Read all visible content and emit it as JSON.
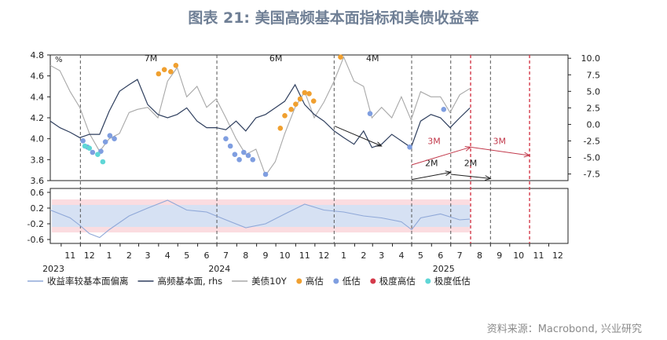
{
  "title": "图表 21: 美国高频基本面指标和美债收益率",
  "source": "资料来源：Macrobond, 兴业研究",
  "colors": {
    "deviation": "#8fa8d8",
    "fundamental": "#2f3f5e",
    "us10y": "#a8a8a8",
    "high": "#f0a030",
    "low": "#7f9ee0",
    "extreme_high": "#d43a4a",
    "extreme_low": "#5fd6d6",
    "band_outer": "#fbdce0",
    "band_inner": "#d6e1f3",
    "annotation_red": "#c2394b",
    "annotation_black": "#222222"
  },
  "chart_data": [
    {
      "type": "line",
      "panel": "top",
      "y_left_unit": "%",
      "y_left_ticks": [
        "3.6",
        "3.8",
        "4.0",
        "4.2",
        "4.4",
        "4.6",
        "4.8"
      ],
      "y_left_range": [
        3.6,
        4.8
      ],
      "y_right_ticks": [
        "-7.5",
        "-5.0",
        "-2.5",
        "0.0",
        "2.5",
        "5.0",
        "7.5",
        "10.0"
      ],
      "y_right_range": [
        -8.5,
        10.5
      ],
      "x_range": [
        "2023-10-15",
        "2025-12-31"
      ],
      "series": [
        {
          "name": "高频基本面, rhs",
          "axis": "right",
          "points": [
            [
              "2023-10-15",
              0.5
            ],
            [
              "2023-10-30",
              -0.5
            ],
            [
              "2023-11-15",
              -1.2
            ],
            [
              "2023-11-30",
              -2.0
            ],
            [
              "2023-12-15",
              -1.5
            ],
            [
              "2023-12-31",
              -1.5
            ],
            [
              "2024-01-15",
              2.0
            ],
            [
              "2024-01-31",
              5.0
            ],
            [
              "2024-02-15",
              6.0
            ],
            [
              "2024-02-28",
              6.8
            ],
            [
              "2024-03-15",
              3.0
            ],
            [
              "2024-03-31",
              1.5
            ],
            [
              "2024-04-15",
              1.0
            ],
            [
              "2024-04-30",
              1.5
            ],
            [
              "2024-05-15",
              2.5
            ],
            [
              "2024-05-31",
              0.5
            ],
            [
              "2024-06-15",
              -0.5
            ],
            [
              "2024-06-30",
              -0.5
            ],
            [
              "2024-07-15",
              -0.8
            ],
            [
              "2024-07-31",
              0.5
            ],
            [
              "2024-08-15",
              -1.0
            ],
            [
              "2024-08-31",
              1.0
            ],
            [
              "2024-09-15",
              1.5
            ],
            [
              "2024-09-30",
              2.5
            ],
            [
              "2024-10-15",
              3.5
            ],
            [
              "2024-10-31",
              6.0
            ],
            [
              "2024-11-15",
              3.0
            ],
            [
              "2024-11-30",
              1.5
            ],
            [
              "2024-12-15",
              0.5
            ],
            [
              "2024-12-31",
              -1.0
            ],
            [
              "2025-01-15",
              -2.0
            ],
            [
              "2025-01-31",
              -3.0
            ],
            [
              "2025-02-15",
              -1.0
            ],
            [
              "2025-02-28",
              -3.5
            ],
            [
              "2025-03-15",
              -3.0
            ],
            [
              "2025-03-31",
              -1.5
            ],
            [
              "2025-04-15",
              -2.5
            ],
            [
              "2025-04-30",
              -3.5
            ],
            [
              "2025-05-15",
              0.5
            ],
            [
              "2025-05-31",
              1.5
            ],
            [
              "2025-06-15",
              1.0
            ],
            [
              "2025-06-30",
              -0.5
            ],
            [
              "2025-07-15",
              1.0
            ],
            [
              "2025-07-31",
              2.5
            ]
          ]
        },
        {
          "name": "美债10Y",
          "axis": "left",
          "points": [
            [
              "2023-10-15",
              4.7
            ],
            [
              "2023-10-30",
              4.65
            ],
            [
              "2023-11-15",
              4.45
            ],
            [
              "2023-11-30",
              4.3
            ],
            [
              "2023-12-15",
              4.05
            ],
            [
              "2023-12-31",
              3.88
            ],
            [
              "2024-01-15",
              4.0
            ],
            [
              "2024-01-31",
              4.05
            ],
            [
              "2024-02-15",
              4.25
            ],
            [
              "2024-02-28",
              4.28
            ],
            [
              "2024-03-15",
              4.3
            ],
            [
              "2024-03-31",
              4.2
            ],
            [
              "2024-04-15",
              4.55
            ],
            [
              "2024-04-30",
              4.68
            ],
            [
              "2024-05-15",
              4.4
            ],
            [
              "2024-05-31",
              4.5
            ],
            [
              "2024-06-15",
              4.3
            ],
            [
              "2024-06-30",
              4.38
            ],
            [
              "2024-07-15",
              4.2
            ],
            [
              "2024-07-31",
              4.0
            ],
            [
              "2024-08-15",
              3.85
            ],
            [
              "2024-08-31",
              3.9
            ],
            [
              "2024-09-15",
              3.65
            ],
            [
              "2024-09-30",
              3.78
            ],
            [
              "2024-10-15",
              4.05
            ],
            [
              "2024-10-31",
              4.3
            ],
            [
              "2024-11-15",
              4.45
            ],
            [
              "2024-11-30",
              4.2
            ],
            [
              "2024-12-15",
              4.35
            ],
            [
              "2024-12-31",
              4.55
            ],
            [
              "2025-01-15",
              4.78
            ],
            [
              "2025-01-31",
              4.55
            ],
            [
              "2025-02-15",
              4.5
            ],
            [
              "2025-02-28",
              4.2
            ],
            [
              "2025-03-15",
              4.3
            ],
            [
              "2025-03-31",
              4.2
            ],
            [
              "2025-04-15",
              4.4
            ],
            [
              "2025-04-30",
              4.18
            ],
            [
              "2025-05-15",
              4.45
            ],
            [
              "2025-05-31",
              4.4
            ],
            [
              "2025-06-15",
              4.4
            ],
            [
              "2025-06-30",
              4.25
            ],
            [
              "2025-07-15",
              4.42
            ],
            [
              "2025-07-31",
              4.48
            ]
          ]
        }
      ],
      "markers": {
        "high": [
          [
            "2024-04-01",
            4.62
          ],
          [
            "2024-04-10",
            4.66
          ],
          [
            "2024-04-20",
            4.64
          ],
          [
            "2024-04-28",
            4.7
          ],
          [
            "2024-10-25",
            4.28
          ],
          [
            "2024-11-01",
            4.33
          ],
          [
            "2024-11-08",
            4.38
          ],
          [
            "2024-11-15",
            4.44
          ],
          [
            "2024-11-22",
            4.43
          ],
          [
            "2024-11-29",
            4.36
          ],
          [
            "2024-10-15",
            4.22
          ],
          [
            "2024-10-08",
            4.1
          ],
          [
            "2025-01-10",
            4.78
          ]
        ],
        "low": [
          [
            "2023-12-05",
            3.98
          ],
          [
            "2023-12-12",
            3.92
          ],
          [
            "2023-12-20",
            3.87
          ],
          [
            "2024-01-02",
            3.88
          ],
          [
            "2024-01-09",
            3.97
          ],
          [
            "2024-01-16",
            4.03
          ],
          [
            "2024-01-23",
            4.0
          ],
          [
            "2024-07-15",
            4.0
          ],
          [
            "2024-07-22",
            3.93
          ],
          [
            "2024-07-29",
            3.85
          ],
          [
            "2024-08-05",
            3.8
          ],
          [
            "2024-08-12",
            3.87
          ],
          [
            "2024-08-19",
            3.84
          ],
          [
            "2024-08-26",
            3.8
          ],
          [
            "2024-09-15",
            3.66
          ],
          [
            "2025-02-25",
            4.24
          ],
          [
            "2025-04-28",
            3.92
          ],
          [
            "2025-06-20",
            4.28
          ]
        ],
        "extreme_low": [
          [
            "2023-12-08",
            3.93
          ],
          [
            "2023-12-15",
            3.91
          ],
          [
            "2023-12-28",
            3.85
          ],
          [
            "2024-01-05",
            3.78
          ]
        ]
      },
      "vlines": [
        "2023-12-01",
        "2024-07-01",
        "2024-12-31",
        "2025-05-01",
        "2025-07-01",
        "2025-08-01",
        "2025-09-01",
        "2025-11-01"
      ],
      "vlines_red": [
        "2025-08-01",
        "2025-11-01"
      ],
      "annotations": [
        {
          "text": "7M",
          "x": "2024-03-20",
          "y": 4.74
        },
        {
          "text": "6M",
          "x": "2024-10-01",
          "y": 4.74
        },
        {
          "text": "4M",
          "x": "2025-03-01",
          "y": 4.74
        },
        {
          "text": "3M",
          "x": "2025-06-05",
          "y": 3.95,
          "color": "red"
        },
        {
          "text": "3M",
          "x": "2025-09-15",
          "y": 3.95,
          "color": "red"
        },
        {
          "text": "2M",
          "x": "2025-06-01",
          "y": 3.74
        },
        {
          "text": "2M",
          "x": "2025-08-01",
          "y": 3.74
        }
      ]
    },
    {
      "type": "area",
      "panel": "bottom",
      "name": "收益率较基本面偏离",
      "y_ticks": [
        "-0.6",
        "-0.2",
        "0.2",
        "0.6"
      ],
      "y_range": [
        -0.7,
        0.7
      ],
      "band_inner": [
        -0.28,
        0.28
      ],
      "band_outer": [
        -0.42,
        0.42
      ],
      "points": [
        [
          "2023-10-15",
          0.15
        ],
        [
          "2023-11-15",
          -0.05
        ],
        [
          "2023-12-01",
          -0.25
        ],
        [
          "2023-12-15",
          -0.45
        ],
        [
          "2023-12-31",
          -0.55
        ],
        [
          "2024-01-15",
          -0.35
        ],
        [
          "2024-02-15",
          0.0
        ],
        [
          "2024-03-15",
          0.2
        ],
        [
          "2024-04-15",
          0.4
        ],
        [
          "2024-05-15",
          0.15
        ],
        [
          "2024-06-15",
          0.1
        ],
        [
          "2024-07-15",
          -0.1
        ],
        [
          "2024-08-15",
          -0.3
        ],
        [
          "2024-09-15",
          -0.2
        ],
        [
          "2024-10-15",
          0.05
        ],
        [
          "2024-11-15",
          0.3
        ],
        [
          "2024-12-15",
          0.15
        ],
        [
          "2025-01-15",
          0.1
        ],
        [
          "2025-02-15",
          0.0
        ],
        [
          "2025-03-15",
          -0.05
        ],
        [
          "2025-04-15",
          -0.15
        ],
        [
          "2025-05-01",
          -0.35
        ],
        [
          "2025-05-15",
          -0.05
        ],
        [
          "2025-06-15",
          0.05
        ],
        [
          "2025-07-15",
          -0.1
        ],
        [
          "2025-07-31",
          -0.08
        ]
      ]
    }
  ],
  "x_axis": {
    "months": [
      "11",
      "12",
      "1",
      "2",
      "3",
      "4",
      "5",
      "6",
      "7",
      "8",
      "9",
      "10",
      "11",
      "12",
      "1",
      "2",
      "3",
      "4",
      "5",
      "6",
      "7",
      "8",
      "9",
      "10",
      "11",
      "12"
    ],
    "years": [
      {
        "label": "2023",
        "at": "2023-10-20"
      },
      {
        "label": "2024",
        "at": "2024-07-05"
      },
      {
        "label": "2025",
        "at": "2025-06-20"
      }
    ]
  },
  "legend": [
    {
      "label": "收益率较基本面偏离",
      "kind": "line",
      "color_key": "deviation"
    },
    {
      "label": "高频基本面, rhs",
      "kind": "line",
      "color_key": "fundamental"
    },
    {
      "label": "美债10Y",
      "kind": "line",
      "color_key": "us10y"
    },
    {
      "label": "高估",
      "kind": "dot",
      "color_key": "high"
    },
    {
      "label": "低估",
      "kind": "dot",
      "color_key": "low"
    },
    {
      "label": "极度高估",
      "kind": "dot",
      "color_key": "extreme_high"
    },
    {
      "label": "极度低估",
      "kind": "dot",
      "color_key": "extreme_low"
    }
  ]
}
